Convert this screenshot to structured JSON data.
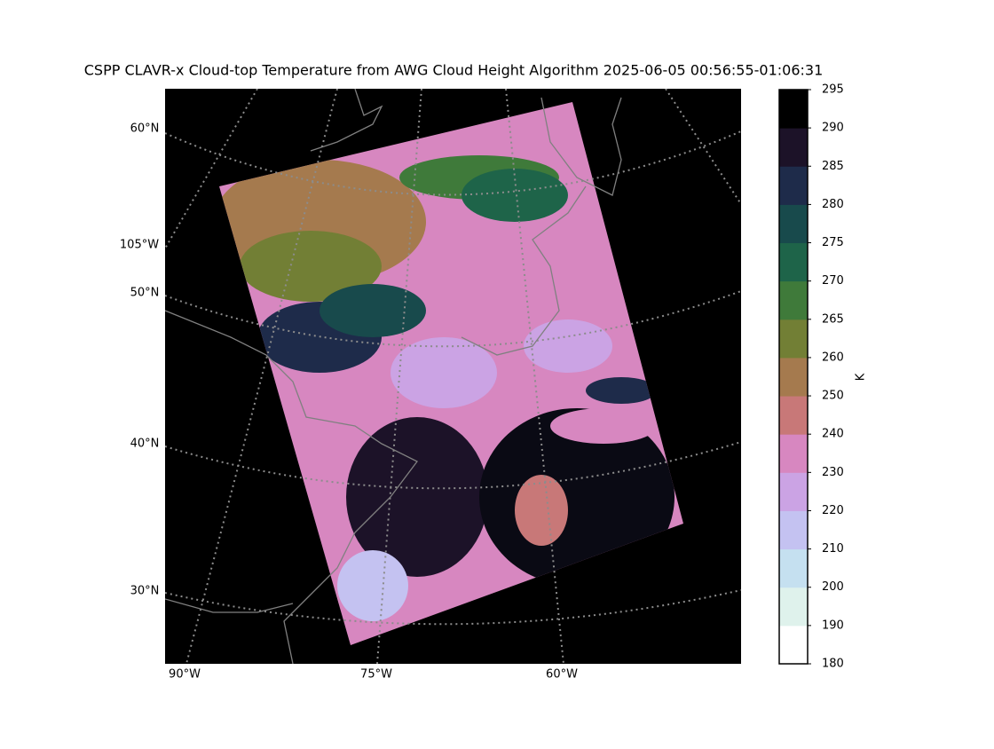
{
  "title": "CSPP CLAVR-x Cloud-top Temperature from AWG Cloud Height Algorithm 2025-06-05 00:56:55-01:06:31",
  "map": {
    "lat_labels": [
      "60°N",
      "105°W",
      "50°N",
      "40°N",
      "30°N"
    ],
    "lon_labels": [
      "90°W",
      "75°W",
      "60°W"
    ]
  },
  "colorbar": {
    "label": "K",
    "ticks": [
      180,
      190,
      200,
      210,
      220,
      230,
      240,
      250,
      260,
      265,
      270,
      275,
      280,
      285,
      290,
      295
    ],
    "colors": [
      "#ffffff",
      "#dff2ec",
      "#c5e0f0",
      "#c4c2f1",
      "#cba3e4",
      "#d787c0",
      "#c87878",
      "#a57a4e",
      "#727f35",
      "#3f7a3a",
      "#1e6449",
      "#184a4c",
      "#1e2b4a",
      "#1c1228",
      "#000000"
    ]
  }
}
